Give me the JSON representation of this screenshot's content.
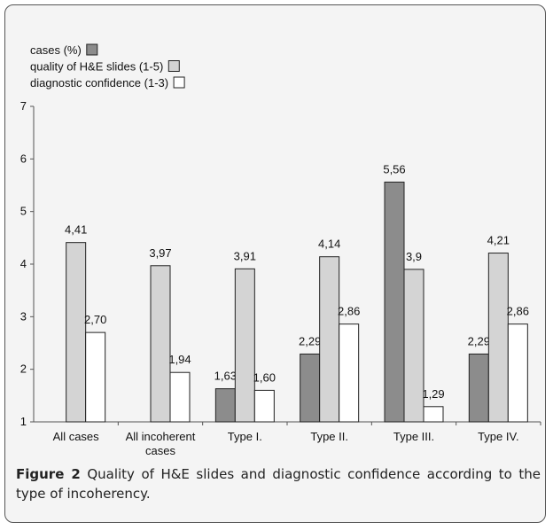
{
  "chart_data": {
    "type": "bar",
    "categories": [
      "All cases",
      "All incoherent cases",
      "Type I.",
      "Type II.",
      "Type III.",
      "Type IV."
    ],
    "series": [
      {
        "name": "cases (%)",
        "color": "#8c8c8c",
        "values": [
          null,
          null,
          1.63,
          2.29,
          5.56,
          2.29
        ],
        "value_labels": [
          null,
          null,
          "1,63",
          "2,29",
          "5,56",
          "2,29"
        ]
      },
      {
        "name": "quality of H&E slides (1-5)",
        "color": "#d4d4d4",
        "values": [
          4.41,
          3.97,
          3.91,
          4.14,
          3.9,
          4.21
        ],
        "value_labels": [
          "4,41",
          "3,97",
          "3,91",
          "4,14",
          "3,9",
          "4,21"
        ]
      },
      {
        "name": "diagnostic confidence (1-3)",
        "color": "#ffffff",
        "values": [
          2.7,
          1.94,
          1.6,
          2.86,
          1.29,
          2.86
        ],
        "value_labels": [
          "2,70",
          "1,94",
          "1,60",
          "2,86",
          "1,29",
          "2,86"
        ]
      }
    ],
    "ylim": [
      1,
      7
    ],
    "yticks": [
      1,
      2,
      3,
      4,
      5,
      6,
      7
    ],
    "caption_label": "Figure 2",
    "caption": "Quality of H&E slides and diagnostic confidence according to the type of incoherency."
  }
}
